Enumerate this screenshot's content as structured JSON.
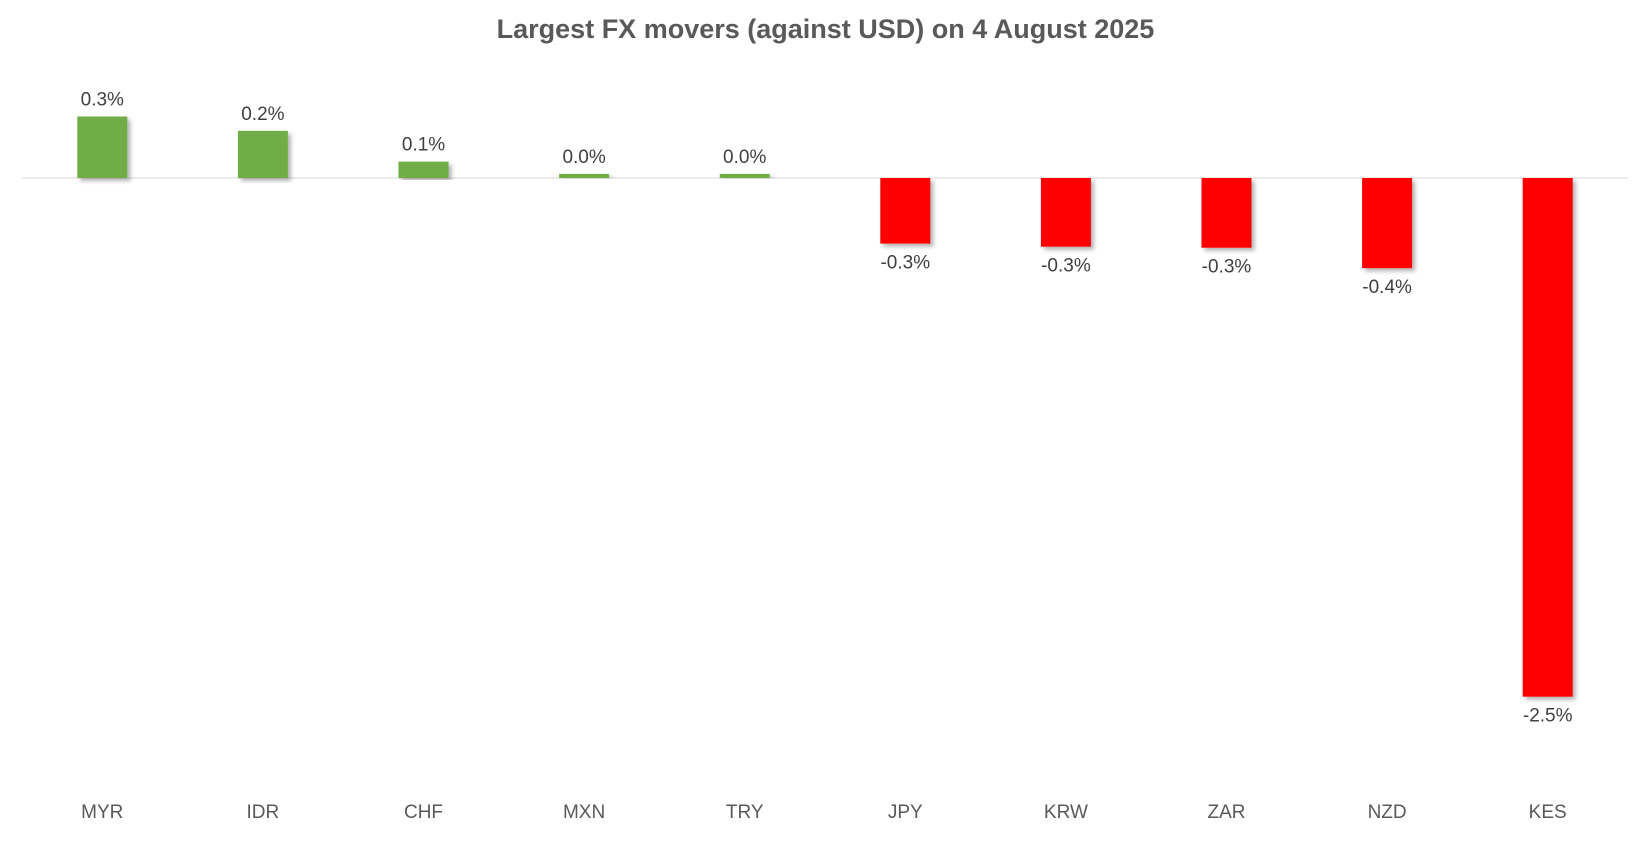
{
  "chart_data": {
    "type": "bar",
    "title": "Largest FX movers (against USD) on 4 August 2025",
    "xlabel": "",
    "ylabel": "",
    "categories": [
      "MYR",
      "IDR",
      "CHF",
      "MXN",
      "TRY",
      "JPY",
      "KRW",
      "ZAR",
      "NZD",
      "KES"
    ],
    "values": [
      0.3,
      0.23,
      0.08,
      0.02,
      0.02,
      -0.32,
      -0.335,
      -0.34,
      -0.44,
      -2.53
    ],
    "data_labels": [
      "0.3%",
      "0.2%",
      "0.1%",
      "0.0%",
      "0.0%",
      "-0.3%",
      "-0.3%",
      "-0.3%",
      "-0.4%",
      "-2.5%"
    ],
    "ylim": [
      -2.9,
      0.55
    ],
    "grid": false,
    "legend": "none",
    "colors": {
      "positive": "#70AD47",
      "negative": "#FF0000",
      "zero_line": "#D9D9D9"
    }
  }
}
